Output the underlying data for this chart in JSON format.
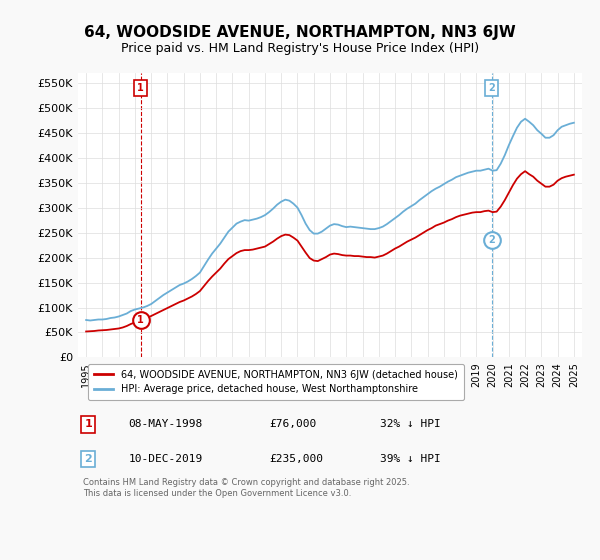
{
  "title": "64, WOODSIDE AVENUE, NORTHAMPTON, NN3 6JW",
  "subtitle": "Price paid vs. HM Land Registry's House Price Index (HPI)",
  "ylabel_ticks": [
    "£0",
    "£50K",
    "£100K",
    "£150K",
    "£200K",
    "£250K",
    "£300K",
    "£350K",
    "£400K",
    "£450K",
    "£500K",
    "£550K"
  ],
  "ytick_values": [
    0,
    50000,
    100000,
    150000,
    200000,
    250000,
    300000,
    350000,
    400000,
    450000,
    500000,
    550000
  ],
  "ylim": [
    0,
    570000
  ],
  "xlim_start": 1994.5,
  "xlim_end": 2025.5,
  "xticks": [
    1995,
    1996,
    1997,
    1998,
    1999,
    2000,
    2001,
    2002,
    2003,
    2004,
    2005,
    2006,
    2007,
    2008,
    2009,
    2010,
    2011,
    2012,
    2013,
    2014,
    2015,
    2016,
    2017,
    2018,
    2019,
    2020,
    2021,
    2022,
    2023,
    2024,
    2025
  ],
  "hpi_color": "#6aaed6",
  "price_color": "#cc0000",
  "marker_color_1": "#cc0000",
  "marker_color_2": "#6aaed6",
  "vline_color_1": "#cc0000",
  "vline_color_2": "#6aaed6",
  "sale1_x": 1998.35,
  "sale1_y": 76000,
  "sale1_label": "1",
  "sale2_x": 2019.94,
  "sale2_y": 235000,
  "sale2_label": "2",
  "legend1_text": "64, WOODSIDE AVENUE, NORTHAMPTON, NN3 6JW (detached house)",
  "legend2_text": "HPI: Average price, detached house, West Northamptonshire",
  "note1_date": "08-MAY-1998",
  "note1_price": "£76,000",
  "note1_hpi": "32% ↓ HPI",
  "note2_date": "10-DEC-2019",
  "note2_price": "£235,000",
  "note2_hpi": "39% ↓ HPI",
  "footer": "Contains HM Land Registry data © Crown copyright and database right 2025.\nThis data is licensed under the Open Government Licence v3.0.",
  "bg_color": "#f9f9f9",
  "plot_bg_color": "#ffffff",
  "hpi_data_x": [
    1995.0,
    1995.25,
    1995.5,
    1995.75,
    1996.0,
    1996.25,
    1996.5,
    1996.75,
    1997.0,
    1997.25,
    1997.5,
    1997.75,
    1998.0,
    1998.25,
    1998.5,
    1998.75,
    1999.0,
    1999.25,
    1999.5,
    1999.75,
    2000.0,
    2000.25,
    2000.5,
    2000.75,
    2001.0,
    2001.25,
    2001.5,
    2001.75,
    2002.0,
    2002.25,
    2002.5,
    2002.75,
    2003.0,
    2003.25,
    2003.5,
    2003.75,
    2004.0,
    2004.25,
    2004.5,
    2004.75,
    2005.0,
    2005.25,
    2005.5,
    2005.75,
    2006.0,
    2006.25,
    2006.5,
    2006.75,
    2007.0,
    2007.25,
    2007.5,
    2007.75,
    2008.0,
    2008.25,
    2008.5,
    2008.75,
    2009.0,
    2009.25,
    2009.5,
    2009.75,
    2010.0,
    2010.25,
    2010.5,
    2010.75,
    2011.0,
    2011.25,
    2011.5,
    2011.75,
    2012.0,
    2012.25,
    2012.5,
    2012.75,
    2013.0,
    2013.25,
    2013.5,
    2013.75,
    2014.0,
    2014.25,
    2014.5,
    2014.75,
    2015.0,
    2015.25,
    2015.5,
    2015.75,
    2016.0,
    2016.25,
    2016.5,
    2016.75,
    2017.0,
    2017.25,
    2017.5,
    2017.75,
    2018.0,
    2018.25,
    2018.5,
    2018.75,
    2019.0,
    2019.25,
    2019.5,
    2019.75,
    2020.0,
    2020.25,
    2020.5,
    2020.75,
    2021.0,
    2021.25,
    2021.5,
    2021.75,
    2022.0,
    2022.25,
    2022.5,
    2022.75,
    2023.0,
    2023.25,
    2023.5,
    2023.75,
    2024.0,
    2024.25,
    2024.5,
    2024.75,
    2025.0
  ],
  "hpi_data_y": [
    75000,
    74000,
    75000,
    76000,
    76000,
    77000,
    79000,
    80000,
    82000,
    85000,
    88000,
    93000,
    96000,
    98000,
    100000,
    103000,
    107000,
    113000,
    119000,
    125000,
    130000,
    135000,
    140000,
    145000,
    148000,
    152000,
    157000,
    163000,
    170000,
    183000,
    196000,
    208000,
    218000,
    228000,
    240000,
    252000,
    260000,
    268000,
    272000,
    275000,
    274000,
    276000,
    278000,
    281000,
    285000,
    291000,
    298000,
    306000,
    312000,
    316000,
    314000,
    308000,
    300000,
    285000,
    268000,
    255000,
    248000,
    248000,
    252000,
    258000,
    264000,
    267000,
    266000,
    263000,
    261000,
    262000,
    261000,
    260000,
    259000,
    258000,
    257000,
    257000,
    259000,
    262000,
    267000,
    273000,
    279000,
    285000,
    292000,
    298000,
    303000,
    308000,
    315000,
    321000,
    327000,
    333000,
    338000,
    342000,
    347000,
    352000,
    356000,
    361000,
    364000,
    367000,
    370000,
    372000,
    374000,
    374000,
    376000,
    378000,
    374000,
    375000,
    388000,
    405000,
    425000,
    443000,
    460000,
    472000,
    478000,
    472000,
    465000,
    455000,
    448000,
    440000,
    440000,
    445000,
    455000,
    462000,
    465000,
    468000,
    470000
  ],
  "price_data_x": [
    1995.0,
    1995.25,
    1995.5,
    1995.75,
    1996.0,
    1996.25,
    1996.5,
    1996.75,
    1997.0,
    1997.25,
    1997.5,
    1997.75,
    1998.0,
    1998.25,
    1998.5,
    1998.75,
    1999.0,
    1999.25,
    1999.5,
    1999.75,
    2000.0,
    2000.25,
    2000.5,
    2000.75,
    2001.0,
    2001.25,
    2001.5,
    2001.75,
    2002.0,
    2002.25,
    2002.5,
    2002.75,
    2003.0,
    2003.25,
    2003.5,
    2003.75,
    2004.0,
    2004.25,
    2004.5,
    2004.75,
    2005.0,
    2005.25,
    2005.5,
    2005.75,
    2006.0,
    2006.25,
    2006.5,
    2006.75,
    2007.0,
    2007.25,
    2007.5,
    2007.75,
    2008.0,
    2008.25,
    2008.5,
    2008.75,
    2009.0,
    2009.25,
    2009.5,
    2009.75,
    2010.0,
    2010.25,
    2010.5,
    2010.75,
    2011.0,
    2011.25,
    2011.5,
    2011.75,
    2012.0,
    2012.25,
    2012.5,
    2012.75,
    2013.0,
    2013.25,
    2013.5,
    2013.75,
    2014.0,
    2014.25,
    2014.5,
    2014.75,
    2015.0,
    2015.25,
    2015.5,
    2015.75,
    2016.0,
    2016.25,
    2016.5,
    2016.75,
    2017.0,
    2017.25,
    2017.5,
    2017.75,
    2018.0,
    2018.25,
    2018.5,
    2018.75,
    2019.0,
    2019.25,
    2019.5,
    2019.75,
    2020.0,
    2020.25,
    2020.5,
    2020.75,
    2021.0,
    2021.25,
    2021.5,
    2021.75,
    2022.0,
    2022.25,
    2022.5,
    2022.75,
    2023.0,
    2023.25,
    2023.5,
    2023.75,
    2024.0,
    2024.25,
    2024.5,
    2024.75,
    2025.0
  ],
  "price_data_y": [
    52000,
    52500,
    53000,
    54000,
    54500,
    55000,
    56000,
    57000,
    58000,
    60000,
    63000,
    67000,
    70000,
    73000,
    76000,
    79000,
    83000,
    87000,
    91000,
    95000,
    99000,
    103000,
    107000,
    111000,
    114000,
    118000,
    122000,
    127000,
    133000,
    143000,
    153000,
    162000,
    170000,
    178000,
    188000,
    197000,
    203000,
    209000,
    213000,
    215000,
    215000,
    216000,
    218000,
    220000,
    222000,
    227000,
    232000,
    238000,
    243000,
    246000,
    245000,
    240000,
    234000,
    222000,
    210000,
    199000,
    194000,
    193000,
    197000,
    201000,
    206000,
    208000,
    207000,
    205000,
    204000,
    204000,
    203000,
    203000,
    202000,
    201000,
    201000,
    200000,
    202000,
    204000,
    208000,
    213000,
    218000,
    222000,
    227000,
    232000,
    236000,
    240000,
    245000,
    250000,
    255000,
    259000,
    264000,
    267000,
    270000,
    274000,
    277000,
    281000,
    284000,
    286000,
    288000,
    290000,
    291000,
    291000,
    293000,
    294000,
    291000,
    292000,
    302000,
    315000,
    330000,
    345000,
    358000,
    367000,
    373000,
    367000,
    362000,
    354000,
    348000,
    342000,
    342000,
    346000,
    354000,
    359000,
    362000,
    364000,
    366000
  ]
}
